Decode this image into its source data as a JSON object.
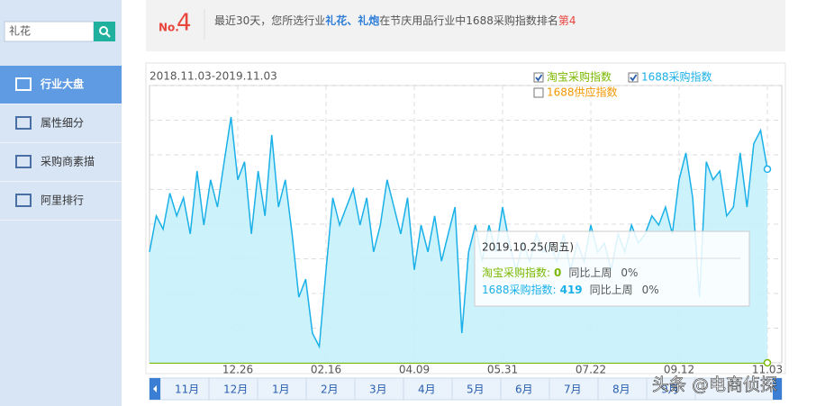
{
  "sidebar": {
    "search_value": "礼花",
    "menu": [
      "行业大盘",
      "属性细分",
      "采购商素描",
      "阿里排行"
    ]
  },
  "header": {
    "rank_prefix": "No.",
    "rank": 4,
    "text_before": "最近30天，您所选行业",
    "industry": "礼花、礼炮",
    "text_middle": "在节庆用品行业中1688采购指数排名",
    "rank_text": "第4"
  },
  "chart_data": {
    "type": "line",
    "date_range": "2018.11.03-2019.11.03",
    "categories": [
      null,
      null,
      null,
      null,
      null,
      null,
      null,
      null,
      null,
      null,
      null,
      null,
      null,
      "12.26",
      null,
      null,
      null,
      null,
      null,
      null,
      null,
      null,
      null,
      null,
      null,
      null,
      "02.16",
      null,
      null,
      null,
      null,
      null,
      null,
      null,
      null,
      null,
      null,
      null,
      null,
      "04.09",
      null,
      null,
      null,
      null,
      null,
      null,
      null,
      null,
      null,
      null,
      null,
      null,
      "05.31",
      null,
      null,
      null,
      null,
      null,
      null,
      null,
      null,
      null,
      null,
      null,
      null,
      "07.22",
      null,
      null,
      null,
      null,
      null,
      null,
      null,
      null,
      null,
      null,
      null,
      null,
      "09.12",
      null,
      null,
      null,
      null,
      null,
      null,
      null,
      null,
      null,
      null,
      null,
      null,
      "11.03"
    ],
    "series": [
      {
        "name": "淘宝采购指数",
        "color": "#7ab800",
        "checked": true,
        "values": [
          0,
          0,
          0,
          0,
          0,
          0,
          0,
          0,
          0,
          0,
          0,
          0,
          0,
          0,
          0,
          0,
          0,
          0,
          0,
          0,
          0,
          0,
          0,
          0,
          0,
          0,
          0,
          0,
          0,
          0,
          0,
          0,
          0,
          0,
          0,
          0,
          0,
          0,
          0,
          0,
          0,
          0,
          0,
          0,
          0,
          0,
          0,
          0,
          0,
          0,
          0,
          0,
          0,
          0,
          0,
          0,
          0,
          0,
          0,
          0,
          0,
          0,
          0,
          0,
          0,
          0,
          0,
          0,
          0,
          0,
          0,
          0,
          0,
          0,
          0,
          0,
          0,
          0,
          0,
          0,
          0,
          0,
          0,
          0,
          0,
          0,
          0,
          0,
          0,
          0,
          0,
          0
        ]
      },
      {
        "name": "1688采购指数",
        "color": "#1ab0e8",
        "checked": true,
        "values": [
          240,
          318,
          289,
          367,
          318,
          357,
          279,
          415,
          298,
          396,
          337,
          435,
          532,
          396,
          435,
          279,
          415,
          318,
          493,
          337,
          396,
          279,
          142,
          181,
          64,
          35,
          201,
          357,
          298,
          337,
          376,
          298,
          357,
          240,
          298,
          396,
          337,
          279,
          357,
          201,
          298,
          240,
          318,
          220,
          279,
          337,
          64,
          240,
          298,
          220,
          298,
          240,
          337,
          259,
          201,
          259,
          220,
          279,
          240,
          259,
          220,
          279,
          201,
          259,
          220,
          298,
          240,
          259,
          201,
          279,
          240,
          298,
          259,
          279,
          318,
          298,
          337,
          279,
          396,
          454,
          357,
          142,
          435,
          396,
          415,
          318,
          337,
          454,
          337,
          474,
          503,
          419
        ]
      }
    ],
    "unchecked_series": {
      "name": "1688供应指数",
      "color": "#f39800"
    },
    "ylim": [
      0,
      600
    ],
    "yticks": [
      0,
      75,
      150,
      225,
      300,
      375,
      450,
      525,
      600
    ],
    "grid": true,
    "tooltip": {
      "date": "2019.10.25(周五)",
      "labels": [
        "淘宝采购指数:",
        "1688采购指数:"
      ],
      "compare_label": "同比上周",
      "changes": [
        "0%",
        "0%"
      ]
    }
  },
  "month_bar": {
    "months": [
      "11月",
      "12月",
      "1月",
      "2月",
      "3月",
      "4月",
      "5月",
      "6月",
      "7月",
      "8月",
      "9月"
    ]
  },
  "watermark": "头条 @电商侦探"
}
